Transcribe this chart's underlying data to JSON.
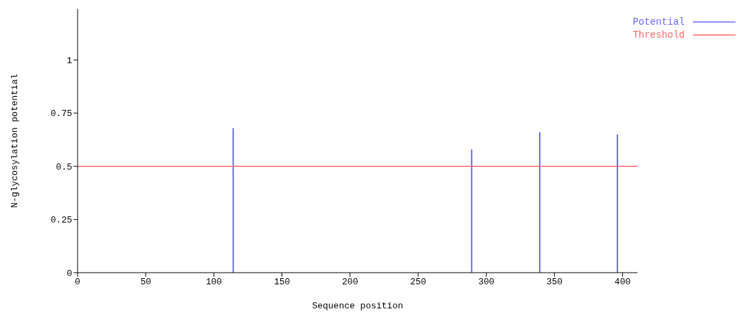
{
  "chart_data": {
    "type": "bar",
    "xlabel": "Sequence position",
    "ylabel": "N-glycosylation potential",
    "x": [
      114,
      289,
      339,
      396
    ],
    "series": [
      {
        "name": "Potential",
        "color": "#6666ff",
        "values": [
          0.68,
          0.58,
          0.66,
          0.65
        ]
      }
    ],
    "ref_lines": [
      {
        "axis": "y",
        "value": 0.5,
        "label": "Threshold",
        "color": "#ff6666"
      }
    ],
    "xlim": [
      0,
      411
    ],
    "xticks": [
      0,
      50,
      100,
      150,
      200,
      250,
      300,
      350,
      400
    ],
    "ylim": [
      0,
      1.24
    ],
    "yticks": [
      0,
      0.25,
      0.5,
      0.75,
      1
    ],
    "grid": false,
    "legend": "top right"
  }
}
